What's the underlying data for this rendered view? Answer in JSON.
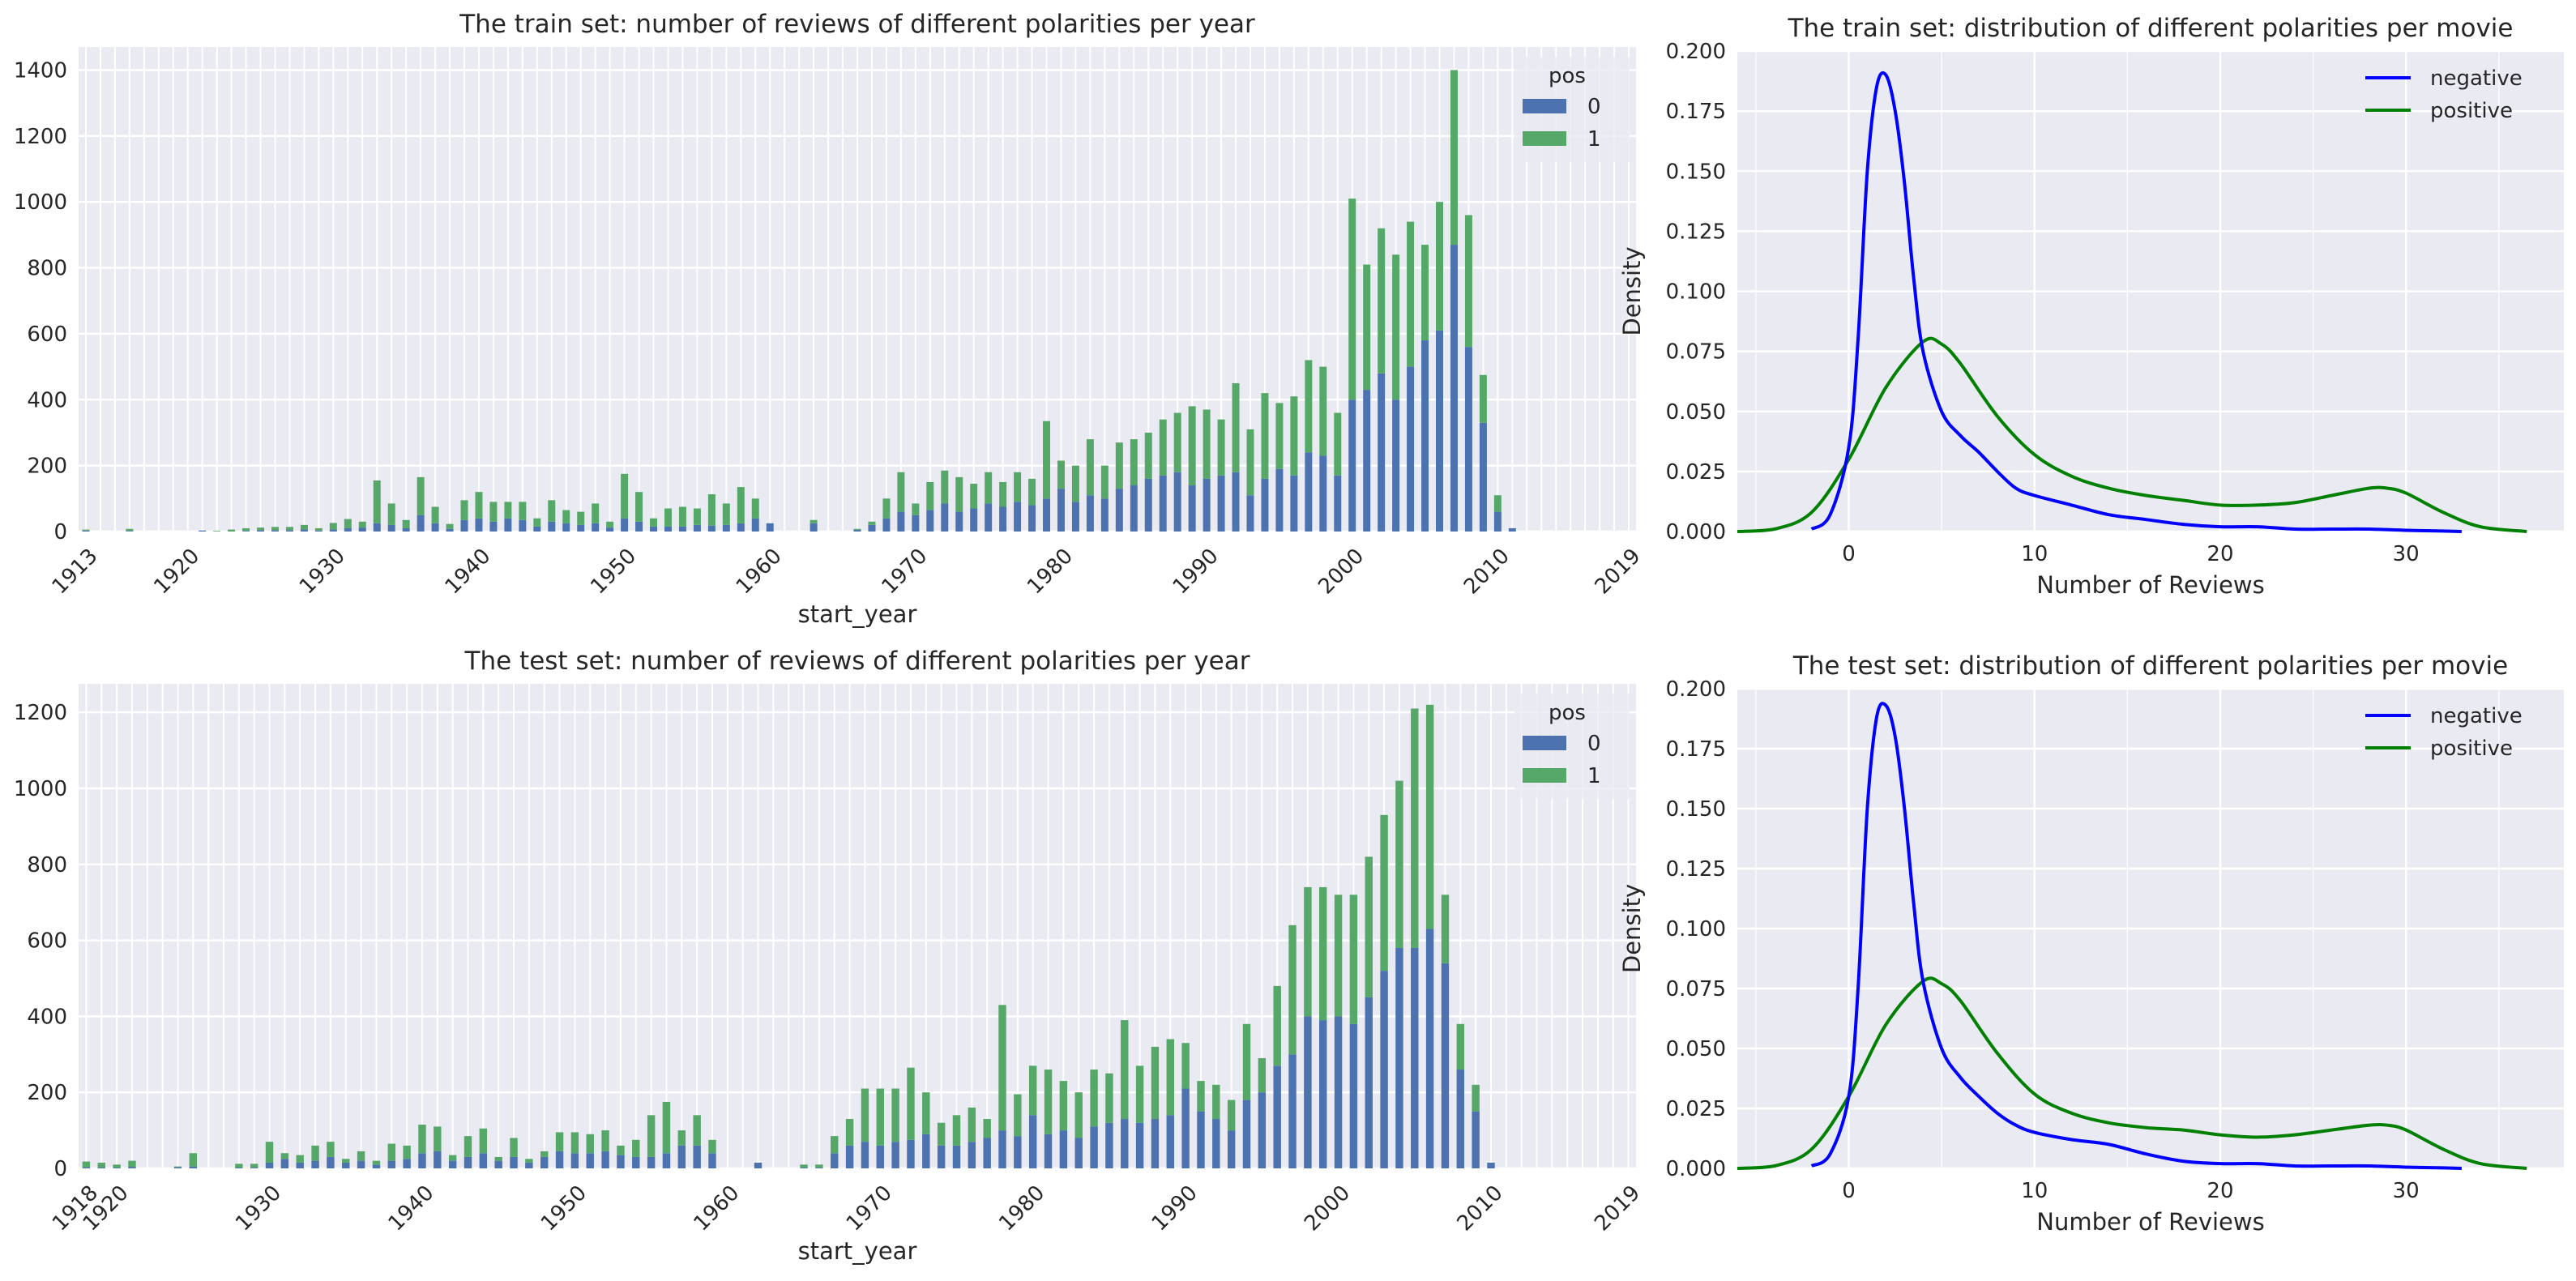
{
  "colors": {
    "neg_bar": "#4c72b0",
    "pos_bar": "#55a868",
    "neg_line": "#0000ff",
    "pos_line": "#008000",
    "panel_bg": "#eaeaf2",
    "grid": "#ffffff"
  },
  "chart_data": [
    {
      "type": "bar",
      "stacked": true,
      "title": "The train set: number of reviews of different polarities per year",
      "xlabel": "start_year",
      "ylabel": "",
      "ylim": [
        0,
        1470
      ],
      "y_ticks": [
        0,
        200,
        400,
        600,
        800,
        1000,
        1200,
        1400
      ],
      "x_ticks": [
        "1913",
        "1920",
        "1930",
        "1940",
        "1950",
        "1960",
        "1970",
        "1980",
        "1990",
        "2000",
        "2010",
        "2019"
      ],
      "legend": {
        "title": "pos",
        "position": "top-right",
        "entries": [
          "0",
          "1"
        ]
      },
      "years": [
        1913,
        1914,
        1915,
        1916,
        1917,
        1918,
        1919,
        1920,
        1921,
        1922,
        1923,
        1924,
        1925,
        1926,
        1927,
        1928,
        1929,
        1930,
        1931,
        1932,
        1933,
        1934,
        1935,
        1936,
        1937,
        1938,
        1939,
        1940,
        1941,
        1942,
        1943,
        1944,
        1945,
        1946,
        1947,
        1948,
        1949,
        1950,
        1951,
        1952,
        1953,
        1954,
        1955,
        1956,
        1957,
        1958,
        1959,
        1960,
        1961,
        1962,
        1963,
        1964,
        1965,
        1966,
        1967,
        1968,
        1969,
        1970,
        1971,
        1972,
        1973,
        1974,
        1975,
        1976,
        1977,
        1978,
        1979,
        1980,
        1981,
        1982,
        1983,
        1984,
        1985,
        1986,
        1987,
        1988,
        1989,
        1990,
        1991,
        1992,
        1993,
        1994,
        1995,
        1996,
        1997,
        1998,
        1999,
        2000,
        2001,
        2002,
        2003,
        2004,
        2005,
        2006,
        2007,
        2008,
        2009,
        2010,
        2011,
        2012,
        2013,
        2014,
        2015,
        2016,
        2017,
        2018,
        2019
      ],
      "series": [
        {
          "name": "0",
          "values": [
            3,
            0,
            0,
            2,
            0,
            0,
            0,
            0,
            3,
            0,
            0,
            2,
            4,
            4,
            4,
            6,
            3,
            6,
            10,
            12,
            25,
            20,
            10,
            50,
            25,
            8,
            35,
            40,
            30,
            40,
            35,
            15,
            30,
            25,
            20,
            25,
            12,
            40,
            30,
            15,
            15,
            15,
            20,
            18,
            20,
            25,
            40,
            25,
            0,
            0,
            25,
            0,
            0,
            5,
            20,
            40,
            60,
            50,
            65,
            85,
            60,
            70,
            85,
            75,
            90,
            80,
            100,
            130,
            90,
            110,
            100,
            130,
            140,
            160,
            170,
            180,
            140,
            160,
            170,
            180,
            110,
            160,
            190,
            170,
            240,
            230,
            170,
            400,
            430,
            480,
            400,
            500,
            580,
            610,
            870,
            560,
            330,
            60,
            10,
            0,
            0,
            0,
            0,
            0,
            0,
            0,
            0
          ]
        },
        {
          "name": "1",
          "values": [
            3,
            0,
            0,
            6,
            0,
            0,
            0,
            0,
            0,
            2,
            6,
            8,
            8,
            10,
            10,
            14,
            7,
            20,
            28,
            18,
            130,
            65,
            25,
            115,
            50,
            15,
            60,
            80,
            60,
            50,
            55,
            25,
            65,
            40,
            40,
            60,
            18,
            135,
            90,
            25,
            55,
            60,
            50,
            95,
            65,
            110,
            60,
            0,
            0,
            0,
            10,
            0,
            0,
            3,
            10,
            60,
            120,
            35,
            85,
            100,
            105,
            75,
            95,
            75,
            90,
            80,
            235,
            85,
            110,
            170,
            100,
            140,
            140,
            140,
            170,
            180,
            240,
            210,
            170,
            270,
            200,
            260,
            200,
            240,
            280,
            270,
            190,
            610,
            380,
            440,
            440,
            440,
            290,
            390,
            530,
            400,
            145,
            50,
            0,
            0,
            0,
            0,
            0,
            0,
            0,
            0,
            0
          ]
        }
      ]
    },
    {
      "type": "line",
      "title": "The train set: distribution of different polarities per movie",
      "xlabel": "Number of Reviews",
      "ylabel": "Density",
      "xlim": [
        -6,
        38.5
      ],
      "ylim": [
        0,
        0.2
      ],
      "x_ticks": [
        0,
        10,
        20,
        30
      ],
      "y_ticks": [
        "0.000",
        "0.025",
        "0.050",
        "0.075",
        "0.100",
        "0.125",
        "0.150",
        "0.175",
        "0.200"
      ],
      "legend": {
        "position": "top-right",
        "entries": [
          "negative",
          "positive"
        ]
      },
      "series": [
        {
          "name": "negative",
          "x": [
            -2,
            -1,
            0,
            0.5,
            1,
            1.5,
            2,
            2.5,
            3,
            3.5,
            4,
            5,
            6,
            7,
            8,
            9,
            10,
            12,
            14,
            16,
            18,
            20,
            22,
            24,
            26,
            28,
            30,
            32,
            33
          ],
          "values": [
            0.001,
            0.007,
            0.035,
            0.08,
            0.15,
            0.185,
            0.19,
            0.175,
            0.145,
            0.105,
            0.075,
            0.05,
            0.04,
            0.033,
            0.025,
            0.018,
            0.015,
            0.011,
            0.007,
            0.005,
            0.003,
            0.002,
            0.002,
            0.001,
            0.001,
            0.001,
            0.0005,
            0.0002,
            0
          ]
        },
        {
          "name": "positive",
          "x": [
            -6,
            -4,
            -2,
            0,
            2,
            4,
            5,
            6,
            8,
            10,
            12,
            14,
            16,
            18,
            20,
            22,
            24,
            26,
            28,
            29,
            30,
            32,
            34,
            36.5
          ],
          "values": [
            0,
            0.001,
            0.008,
            0.03,
            0.06,
            0.079,
            0.078,
            0.07,
            0.048,
            0.032,
            0.023,
            0.018,
            0.015,
            0.013,
            0.011,
            0.011,
            0.012,
            0.015,
            0.018,
            0.018,
            0.016,
            0.008,
            0.002,
            0
          ]
        }
      ]
    },
    {
      "type": "bar",
      "stacked": true,
      "title": "The test set: number of reviews of different polarities per year",
      "xlabel": "start_year",
      "ylabel": "",
      "ylim": [
        0,
        1275
      ],
      "y_ticks": [
        0,
        200,
        400,
        600,
        800,
        1000,
        1200
      ],
      "x_ticks": [
        "1918",
        "1920",
        "1930",
        "1940",
        "1950",
        "1960",
        "1970",
        "1980",
        "1990",
        "2000",
        "2010",
        "2019"
      ],
      "legend": {
        "title": "pos",
        "position": "top-right",
        "entries": [
          "0",
          "1"
        ]
      },
      "years": [
        1918,
        1919,
        1920,
        1921,
        1922,
        1923,
        1924,
        1925,
        1926,
        1927,
        1928,
        1929,
        1930,
        1931,
        1932,
        1933,
        1934,
        1935,
        1936,
        1937,
        1938,
        1939,
        1940,
        1941,
        1942,
        1943,
        1944,
        1945,
        1946,
        1947,
        1948,
        1949,
        1950,
        1951,
        1952,
        1953,
        1954,
        1955,
        1956,
        1957,
        1958,
        1959,
        1960,
        1961,
        1962,
        1963,
        1964,
        1965,
        1966,
        1967,
        1968,
        1969,
        1970,
        1971,
        1972,
        1973,
        1974,
        1975,
        1976,
        1977,
        1978,
        1979,
        1980,
        1981,
        1982,
        1983,
        1984,
        1985,
        1986,
        1987,
        1988,
        1989,
        1990,
        1991,
        1992,
        1993,
        1994,
        1995,
        1996,
        1997,
        1998,
        1999,
        2000,
        2001,
        2002,
        2003,
        2004,
        2005,
        2006,
        2007,
        2008,
        2009,
        2010,
        2011,
        2012,
        2013,
        2014,
        2015,
        2016,
        2017,
        2018,
        2019
      ],
      "series": [
        {
          "name": "0",
          "values": [
            3,
            2,
            2,
            4,
            0,
            0,
            3,
            5,
            0,
            0,
            2,
            2,
            15,
            25,
            15,
            20,
            30,
            15,
            20,
            10,
            20,
            25,
            40,
            45,
            20,
            30,
            40,
            20,
            30,
            15,
            30,
            45,
            40,
            40,
            45,
            35,
            30,
            30,
            40,
            60,
            60,
            40,
            0,
            0,
            15,
            0,
            0,
            2,
            2,
            40,
            60,
            70,
            60,
            70,
            75,
            90,
            60,
            60,
            70,
            80,
            100,
            85,
            140,
            90,
            100,
            80,
            110,
            120,
            130,
            120,
            130,
            140,
            210,
            150,
            130,
            100,
            180,
            200,
            270,
            300,
            400,
            390,
            400,
            380,
            450,
            520,
            580,
            580,
            630,
            540,
            260,
            150,
            15,
            0,
            0,
            0,
            0,
            0,
            0,
            0,
            0,
            0
          ]
        },
        {
          "name": "1",
          "values": [
            15,
            13,
            8,
            16,
            0,
            0,
            2,
            35,
            0,
            0,
            10,
            10,
            55,
            15,
            20,
            40,
            40,
            10,
            25,
            10,
            45,
            35,
            75,
            65,
            15,
            55,
            65,
            10,
            50,
            10,
            15,
            50,
            55,
            50,
            55,
            25,
            45,
            110,
            135,
            40,
            80,
            35,
            0,
            0,
            0,
            0,
            0,
            8,
            8,
            45,
            70,
            140,
            150,
            140,
            190,
            110,
            60,
            80,
            90,
            50,
            330,
            110,
            130,
            170,
            130,
            120,
            150,
            130,
            260,
            150,
            190,
            200,
            120,
            80,
            90,
            80,
            200,
            90,
            210,
            340,
            340,
            350,
            320,
            340,
            370,
            410,
            440,
            630,
            590,
            180,
            120,
            70,
            0,
            0,
            0,
            0,
            0,
            0,
            0,
            0,
            0,
            0
          ]
        }
      ]
    },
    {
      "type": "line",
      "title": "The test set: distribution of different polarities per movie",
      "xlabel": "Number of Reviews",
      "ylabel": "Density",
      "xlim": [
        -6,
        38.5
      ],
      "ylim": [
        0,
        0.2
      ],
      "x_ticks": [
        0,
        10,
        20,
        30
      ],
      "y_ticks": [
        "0.000",
        "0.025",
        "0.050",
        "0.075",
        "0.100",
        "0.125",
        "0.150",
        "0.175",
        "0.200"
      ],
      "legend": {
        "position": "top-right",
        "entries": [
          "negative",
          "positive"
        ]
      },
      "series": [
        {
          "name": "negative",
          "x": [
            -2,
            -1,
            0,
            0.5,
            1,
            1.5,
            2,
            2.5,
            3,
            3.5,
            4,
            5,
            6,
            7,
            8,
            9,
            10,
            12,
            14,
            16,
            18,
            20,
            22,
            24,
            26,
            28,
            30,
            32,
            33
          ],
          "values": [
            0.001,
            0.006,
            0.03,
            0.075,
            0.15,
            0.188,
            0.193,
            0.18,
            0.15,
            0.11,
            0.078,
            0.05,
            0.038,
            0.03,
            0.023,
            0.018,
            0.015,
            0.012,
            0.01,
            0.006,
            0.003,
            0.002,
            0.002,
            0.001,
            0.001,
            0.001,
            0.0005,
            0.0002,
            0
          ]
        },
        {
          "name": "positive",
          "x": [
            -6,
            -4,
            -2,
            0,
            2,
            4,
            5,
            6,
            8,
            10,
            12,
            14,
            16,
            18,
            20,
            22,
            24,
            26,
            28,
            29,
            30,
            32,
            34,
            36.5
          ],
          "values": [
            0,
            0.001,
            0.008,
            0.03,
            0.06,
            0.078,
            0.077,
            0.07,
            0.048,
            0.031,
            0.023,
            0.019,
            0.017,
            0.016,
            0.014,
            0.013,
            0.014,
            0.016,
            0.018,
            0.018,
            0.016,
            0.008,
            0.002,
            0
          ]
        }
      ]
    }
  ]
}
